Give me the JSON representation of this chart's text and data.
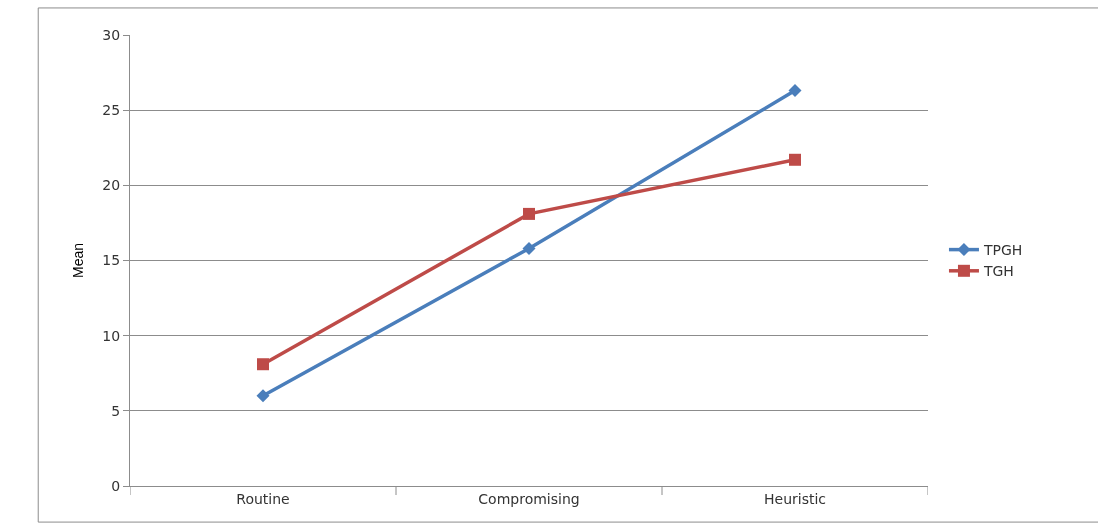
{
  "chart_data": {
    "type": "line",
    "ylabel": "Mean",
    "categories": [
      "Routine",
      "Compromising",
      "Heuristic"
    ],
    "series": [
      {
        "name": "TPGH",
        "color": "#4a7ebb",
        "values": [
          6.0,
          15.8,
          26.3
        ],
        "marker": "diamond"
      },
      {
        "name": "TGH",
        "color": "#be4b48",
        "values": [
          8.1,
          18.1,
          21.7
        ],
        "marker": "square"
      }
    ],
    "ylim": [
      0,
      30
    ],
    "yticks": [
      0,
      5,
      10,
      15,
      20,
      25,
      30
    ],
    "grid": "y",
    "legend": "right",
    "line_style": "solid"
  }
}
